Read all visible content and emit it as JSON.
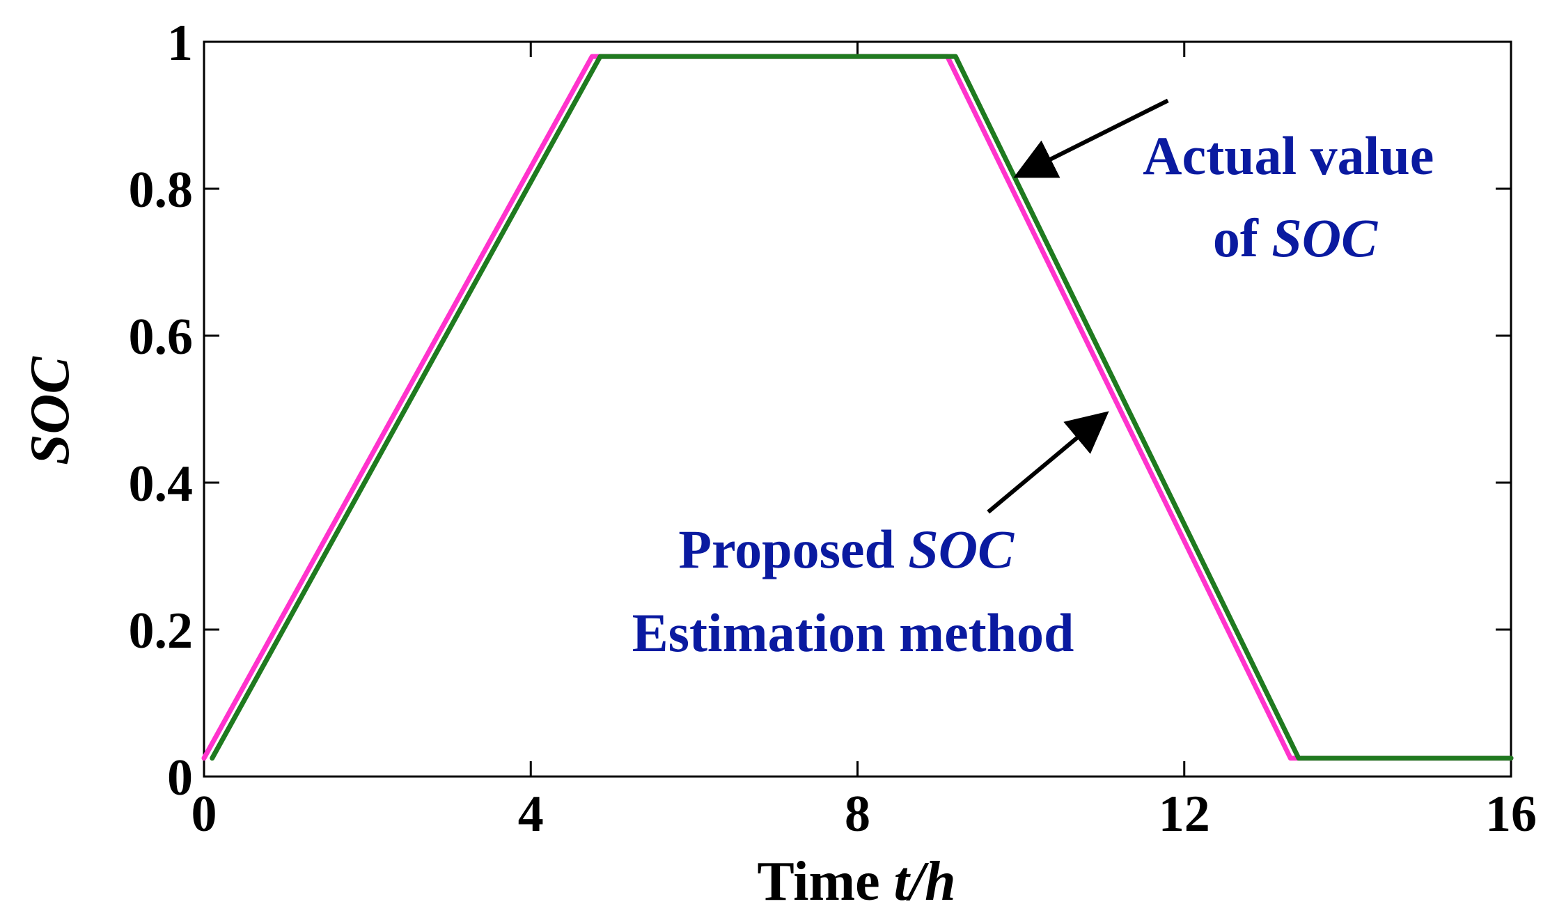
{
  "chart_data": {
    "type": "line",
    "xlabel": {
      "prefix": "Time ",
      "italic": "t/h"
    },
    "ylabel": "SOC",
    "xlim": [
      0,
      16
    ],
    "ylim": [
      0,
      1
    ],
    "xticks": [
      0,
      4,
      8,
      12,
      16
    ],
    "yticks": [
      0,
      0.2,
      0.4,
      0.6,
      0.8,
      1
    ],
    "ytick_labels": [
      "0",
      "0.2",
      "0.4",
      "0.6",
      "0.8",
      "1"
    ],
    "grid": false,
    "series": [
      {
        "color": "#ff33cc",
        "x": [
          0,
          4.75,
          9.1,
          13.3,
          16
        ],
        "y": [
          0.025,
          0.98,
          0.98,
          0.025,
          0.025
        ]
      },
      {
        "color": "#1f7a1f",
        "x": [
          0.1,
          4.85,
          9.2,
          13.4,
          16
        ],
        "y": [
          0.025,
          0.98,
          0.98,
          0.025,
          0.025
        ]
      }
    ],
    "annotations": [
      {
        "lines": [
          {
            "text": "Actual value"
          },
          {
            "prefix": "of ",
            "italic": "SOC"
          }
        ],
        "color": "#0a1aa0",
        "arrow_from": [
          11.8,
          0.92
        ],
        "arrow_to": [
          10.0,
          0.82
        ]
      },
      {
        "lines": [
          {
            "prefix": "Proposed ",
            "italic": "SOC"
          },
          {
            "text": "Estimation method"
          }
        ],
        "color": "#0a1aa0",
        "arrow_from": [
          9.6,
          0.36
        ],
        "arrow_to": [
          11.0,
          0.49
        ]
      }
    ]
  }
}
